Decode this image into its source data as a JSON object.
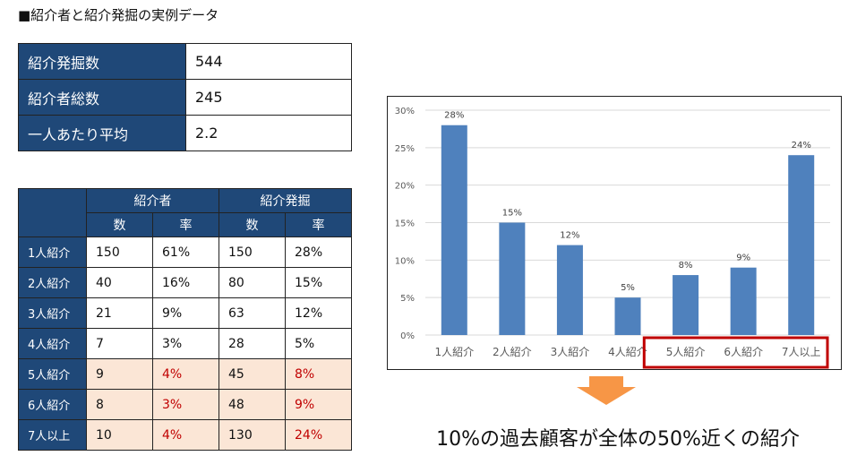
{
  "title": "■紹介者と紹介発掘の実例データ",
  "summary": [
    {
      "label": "紹介発掘数",
      "value": "544"
    },
    {
      "label": "紹介者総数",
      "value": "245"
    },
    {
      "label": "一人あたり平均",
      "value": "2.2"
    }
  ],
  "table": {
    "group_headers": [
      "紹介者",
      "紹介発掘"
    ],
    "sub_headers": [
      "数",
      "率",
      "数",
      "率"
    ],
    "rows": [
      {
        "label": "1人紹介",
        "cells": [
          "150",
          "61%",
          "150",
          "28%"
        ]
      },
      {
        "label": "2人紹介",
        "cells": [
          "40",
          "16%",
          "80",
          "15%"
        ]
      },
      {
        "label": "3人紹介",
        "cells": [
          "21",
          "9%",
          "63",
          "12%"
        ]
      },
      {
        "label": "4人紹介",
        "cells": [
          "7",
          "3%",
          "28",
          "5%"
        ]
      },
      {
        "label": "5人紹介",
        "cells": [
          "9",
          "4%",
          "45",
          "8%"
        ]
      },
      {
        "label": "6人紹介",
        "cells": [
          "8",
          "3%",
          "48",
          "9%"
        ]
      },
      {
        "label": "7人以上",
        "cells": [
          "10",
          "4%",
          "130",
          "24%"
        ]
      }
    ]
  },
  "chart_data": {
    "type": "bar",
    "categories": [
      "1人紹介",
      "2人紹介",
      "3人紹介",
      "4人紹介",
      "5人紹介",
      "6人紹介",
      "7人以上"
    ],
    "values": [
      28,
      15,
      12,
      5,
      8,
      9,
      24
    ],
    "data_labels": [
      "28%",
      "15%",
      "12%",
      "5%",
      "8%",
      "9%",
      "24%"
    ],
    "yticks": [
      "0%",
      "5%",
      "10%",
      "15%",
      "20%",
      "25%",
      "30%"
    ],
    "ylim": [
      0,
      30
    ],
    "grid": true,
    "highlighted_categories": [
      "5人紹介",
      "6人紹介",
      "7人以上"
    ],
    "bar_color": "#4f81bd",
    "highlight_color": "#c00000"
  },
  "caption": "10%の過去顧客が全体の50%近くの紹介",
  "arrow_color": "#f79646"
}
